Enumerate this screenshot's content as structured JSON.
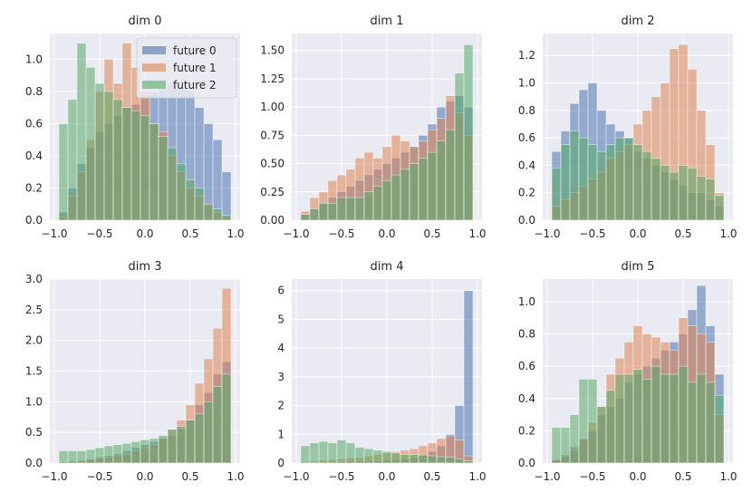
{
  "figure": {
    "colors": {
      "plot_bg": "#eaeaf2",
      "grid": "#ffffff",
      "future_0": "#4c72b0",
      "future_1": "#dd8452",
      "future_2": "#55a868"
    }
  },
  "chart_data": [
    {
      "type": "histogram",
      "title": "dim 0",
      "bin_edges": [
        -0.95,
        -0.85,
        -0.75,
        -0.65,
        -0.55,
        -0.45,
        -0.35,
        -0.25,
        -0.15,
        -0.05,
        0.05,
        0.15,
        0.25,
        0.35,
        0.45,
        0.55,
        0.65,
        0.75,
        0.85,
        0.95
      ],
      "x_ticks": [
        -1.0,
        -0.5,
        0.0,
        0.5,
        1.0
      ],
      "x_tick_labels": [
        "−1.0",
        "−0.5",
        "0.0",
        "0.5",
        "1.0"
      ],
      "y_ticks": [
        0.0,
        0.2,
        0.4,
        0.6,
        0.8,
        1.0
      ],
      "y_tick_labels": [
        "0.0",
        "0.2",
        "0.4",
        "0.6",
        "0.8",
        "1.0"
      ],
      "xlim": [
        -1.05,
        1.05
      ],
      "ylim": [
        0,
        1.16
      ],
      "legend": {
        "position": "top-right",
        "entries": [
          "future 0",
          "future 1",
          "future 2"
        ]
      },
      "series": [
        {
          "name": "future 0",
          "values": [
            0.05,
            0.2,
            0.35,
            0.45,
            0.55,
            0.6,
            0.65,
            0.7,
            0.72,
            0.78,
            0.8,
            0.82,
            0.85,
            0.82,
            0.8,
            0.7,
            0.6,
            0.5,
            0.3
          ]
        },
        {
          "name": "future 1",
          "values": [
            0.02,
            0.15,
            0.3,
            0.5,
            0.8,
            1.0,
            0.85,
            1.1,
            0.95,
            0.8,
            0.6,
            0.55,
            0.4,
            0.3,
            0.2,
            0.15,
            0.1,
            0.05,
            0.02
          ]
        },
        {
          "name": "future 2",
          "values": [
            0.6,
            0.75,
            1.1,
            0.95,
            0.85,
            0.8,
            0.75,
            0.7,
            0.68,
            0.65,
            0.6,
            0.52,
            0.45,
            0.35,
            0.25,
            0.2,
            0.1,
            0.07,
            0.03
          ]
        }
      ]
    },
    {
      "type": "histogram",
      "title": "dim 1",
      "bin_edges": [
        -0.95,
        -0.85,
        -0.75,
        -0.65,
        -0.55,
        -0.45,
        -0.35,
        -0.25,
        -0.15,
        -0.05,
        0.05,
        0.15,
        0.25,
        0.35,
        0.45,
        0.55,
        0.65,
        0.75,
        0.85,
        0.95
      ],
      "x_ticks": [
        -1.0,
        -0.5,
        0.0,
        0.5,
        1.0
      ],
      "x_tick_labels": [
        "−1.0",
        "−0.5",
        "0.0",
        "0.5",
        "1.0"
      ],
      "y_ticks": [
        0.0,
        0.25,
        0.5,
        0.75,
        1.0,
        1.25,
        1.5
      ],
      "y_tick_labels": [
        "0.00",
        "0.25",
        "0.50",
        "0.75",
        "1.00",
        "1.25",
        "1.50"
      ],
      "xlim": [
        -1.05,
        1.05
      ],
      "ylim": [
        0,
        1.65
      ],
      "series": [
        {
          "name": "future 0",
          "values": [
            0.05,
            0.1,
            0.15,
            0.2,
            0.25,
            0.3,
            0.35,
            0.4,
            0.45,
            0.5,
            0.55,
            0.6,
            0.65,
            0.75,
            0.85,
            1.0,
            1.05,
            1.1,
            1.0
          ]
        },
        {
          "name": "future 1",
          "values": [
            0.08,
            0.2,
            0.25,
            0.35,
            0.4,
            0.45,
            0.55,
            0.6,
            0.55,
            0.65,
            0.75,
            0.7,
            0.65,
            0.7,
            0.8,
            0.9,
            1.1,
            0.95,
            0.75
          ]
        },
        {
          "name": "future 2",
          "values": [
            0.05,
            0.1,
            0.15,
            0.15,
            0.2,
            0.2,
            0.2,
            0.25,
            0.3,
            0.35,
            0.4,
            0.45,
            0.5,
            0.55,
            0.6,
            0.7,
            0.8,
            1.3,
            1.55
          ]
        }
      ]
    },
    {
      "type": "histogram",
      "title": "dim 2",
      "bin_edges": [
        -0.95,
        -0.85,
        -0.75,
        -0.65,
        -0.55,
        -0.45,
        -0.35,
        -0.25,
        -0.15,
        -0.05,
        0.05,
        0.15,
        0.25,
        0.35,
        0.45,
        0.55,
        0.65,
        0.75,
        0.85,
        0.95
      ],
      "x_ticks": [
        -1.0,
        -0.5,
        0.0,
        0.5,
        1.0
      ],
      "x_tick_labels": [
        "−1.0",
        "−0.5",
        "0.0",
        "0.5",
        "1.0"
      ],
      "y_ticks": [
        0.0,
        0.2,
        0.4,
        0.6,
        0.8,
        1.0,
        1.2
      ],
      "y_tick_labels": [
        "0.0",
        "0.2",
        "0.4",
        "0.6",
        "0.8",
        "1.0",
        "1.2"
      ],
      "xlim": [
        -1.05,
        1.05
      ],
      "ylim": [
        0,
        1.36
      ],
      "series": [
        {
          "name": "future 0",
          "values": [
            0.5,
            0.65,
            0.85,
            0.95,
            1.0,
            0.8,
            0.7,
            0.65,
            0.6,
            0.5,
            0.45,
            0.4,
            0.35,
            0.3,
            0.25,
            0.2,
            0.2,
            0.15,
            0.1
          ]
        },
        {
          "name": "future 1",
          "values": [
            0.1,
            0.15,
            0.2,
            0.25,
            0.3,
            0.35,
            0.45,
            0.5,
            0.55,
            0.7,
            0.8,
            0.9,
            1.0,
            1.25,
            1.28,
            1.1,
            0.8,
            0.55,
            0.2
          ]
        },
        {
          "name": "future 2",
          "values": [
            0.38,
            0.55,
            0.65,
            0.6,
            0.55,
            0.5,
            0.55,
            0.6,
            0.6,
            0.55,
            0.5,
            0.45,
            0.4,
            0.35,
            0.4,
            0.38,
            0.32,
            0.3,
            0.18
          ]
        }
      ]
    },
    {
      "type": "histogram",
      "title": "dim 3",
      "bin_edges": [
        -0.95,
        -0.85,
        -0.75,
        -0.65,
        -0.55,
        -0.45,
        -0.35,
        -0.25,
        -0.15,
        -0.05,
        0.05,
        0.15,
        0.25,
        0.35,
        0.45,
        0.55,
        0.65,
        0.75,
        0.85,
        0.95
      ],
      "x_ticks": [
        -1.0,
        -0.5,
        0.0,
        0.5,
        1.0
      ],
      "x_tick_labels": [
        "−1.0",
        "−0.5",
        "0.0",
        "0.5",
        "1.0"
      ],
      "y_ticks": [
        0.0,
        0.5,
        1.0,
        1.5,
        2.0,
        2.5,
        3.0
      ],
      "y_tick_labels": [
        "0.0",
        "0.5",
        "1.0",
        "1.5",
        "2.0",
        "2.5",
        "3.0"
      ],
      "xlim": [
        -1.05,
        1.05
      ],
      "ylim": [
        0,
        3.0
      ],
      "series": [
        {
          "name": "future 0",
          "values": [
            0.02,
            0.03,
            0.05,
            0.07,
            0.1,
            0.12,
            0.15,
            0.2,
            0.25,
            0.3,
            0.35,
            0.4,
            0.45,
            0.55,
            0.7,
            0.95,
            1.15,
            1.45,
            1.65
          ]
        },
        {
          "name": "future 1",
          "values": [
            0.02,
            0.03,
            0.04,
            0.06,
            0.08,
            0.1,
            0.12,
            0.15,
            0.2,
            0.25,
            0.3,
            0.4,
            0.55,
            0.7,
            0.95,
            1.3,
            1.7,
            2.2,
            2.85
          ]
        },
        {
          "name": "future 2",
          "values": [
            0.2,
            0.2,
            0.2,
            0.22,
            0.25,
            0.28,
            0.3,
            0.32,
            0.35,
            0.38,
            0.4,
            0.45,
            0.55,
            0.6,
            0.7,
            0.8,
            1.0,
            1.25,
            1.45
          ]
        }
      ]
    },
    {
      "type": "histogram",
      "title": "dim 4",
      "bin_edges": [
        -0.95,
        -0.85,
        -0.75,
        -0.65,
        -0.55,
        -0.45,
        -0.35,
        -0.25,
        -0.15,
        -0.05,
        0.05,
        0.15,
        0.25,
        0.35,
        0.45,
        0.55,
        0.65,
        0.75,
        0.85,
        0.95
      ],
      "x_ticks": [
        -1.0,
        -0.5,
        0.0,
        0.5,
        1.0
      ],
      "x_tick_labels": [
        "−1.0",
        "−0.5",
        "0.0",
        "0.5",
        "1.0"
      ],
      "y_ticks": [
        0,
        1,
        2,
        3,
        4,
        5,
        6
      ],
      "y_tick_labels": [
        "0",
        "1",
        "2",
        "3",
        "4",
        "5",
        "6"
      ],
      "xlim": [
        -1.05,
        1.05
      ],
      "ylim": [
        0,
        6.4
      ],
      "series": [
        {
          "name": "future 0",
          "values": [
            0.02,
            0.02,
            0.03,
            0.03,
            0.04,
            0.05,
            0.06,
            0.07,
            0.08,
            0.1,
            0.12,
            0.15,
            0.2,
            0.3,
            0.4,
            0.6,
            1.0,
            2.0,
            6.0
          ]
        },
        {
          "name": "future 1",
          "values": [
            0.05,
            0.08,
            0.1,
            0.12,
            0.15,
            0.18,
            0.2,
            0.25,
            0.3,
            0.35,
            0.4,
            0.45,
            0.5,
            0.6,
            0.7,
            0.85,
            0.95,
            0.8,
            0.25
          ]
        },
        {
          "name": "future 2",
          "values": [
            0.6,
            0.7,
            0.75,
            0.7,
            0.8,
            0.7,
            0.55,
            0.5,
            0.45,
            0.4,
            0.35,
            0.3,
            0.3,
            0.28,
            0.25,
            0.22,
            0.2,
            0.15,
            0.08
          ]
        }
      ]
    },
    {
      "type": "histogram",
      "title": "dim 5",
      "bin_edges": [
        -0.95,
        -0.85,
        -0.75,
        -0.65,
        -0.55,
        -0.45,
        -0.35,
        -0.25,
        -0.15,
        -0.05,
        0.05,
        0.15,
        0.25,
        0.35,
        0.45,
        0.55,
        0.65,
        0.75,
        0.85,
        0.95
      ],
      "x_ticks": [
        -1.0,
        -0.5,
        0.0,
        0.5,
        1.0
      ],
      "x_tick_labels": [
        "−1.0",
        "−0.5",
        "0.0",
        "0.5",
        "1.0"
      ],
      "y_ticks": [
        0.0,
        0.2,
        0.4,
        0.6,
        0.8,
        1.0
      ],
      "y_tick_labels": [
        "0.0",
        "0.2",
        "0.4",
        "0.6",
        "0.8",
        "1.0"
      ],
      "xlim": [
        -1.05,
        1.05
      ],
      "ylim": [
        0,
        1.14
      ],
      "series": [
        {
          "name": "future 0",
          "values": [
            0.02,
            0.05,
            0.1,
            0.15,
            0.2,
            0.3,
            0.35,
            0.4,
            0.5,
            0.55,
            0.6,
            0.65,
            0.7,
            0.75,
            0.8,
            0.95,
            1.1,
            0.85,
            0.55
          ]
        },
        {
          "name": "future 1",
          "values": [
            0.02,
            0.04,
            0.08,
            0.15,
            0.25,
            0.35,
            0.55,
            0.65,
            0.75,
            0.85,
            0.8,
            0.78,
            0.75,
            0.7,
            0.9,
            0.85,
            0.8,
            0.75,
            0.3
          ]
        },
        {
          "name": "future 2",
          "values": [
            0.22,
            0.22,
            0.3,
            0.52,
            0.52,
            0.35,
            0.45,
            0.55,
            0.55,
            0.58,
            0.52,
            0.6,
            0.55,
            0.55,
            0.6,
            0.5,
            0.55,
            0.5,
            0.42
          ]
        }
      ]
    }
  ]
}
